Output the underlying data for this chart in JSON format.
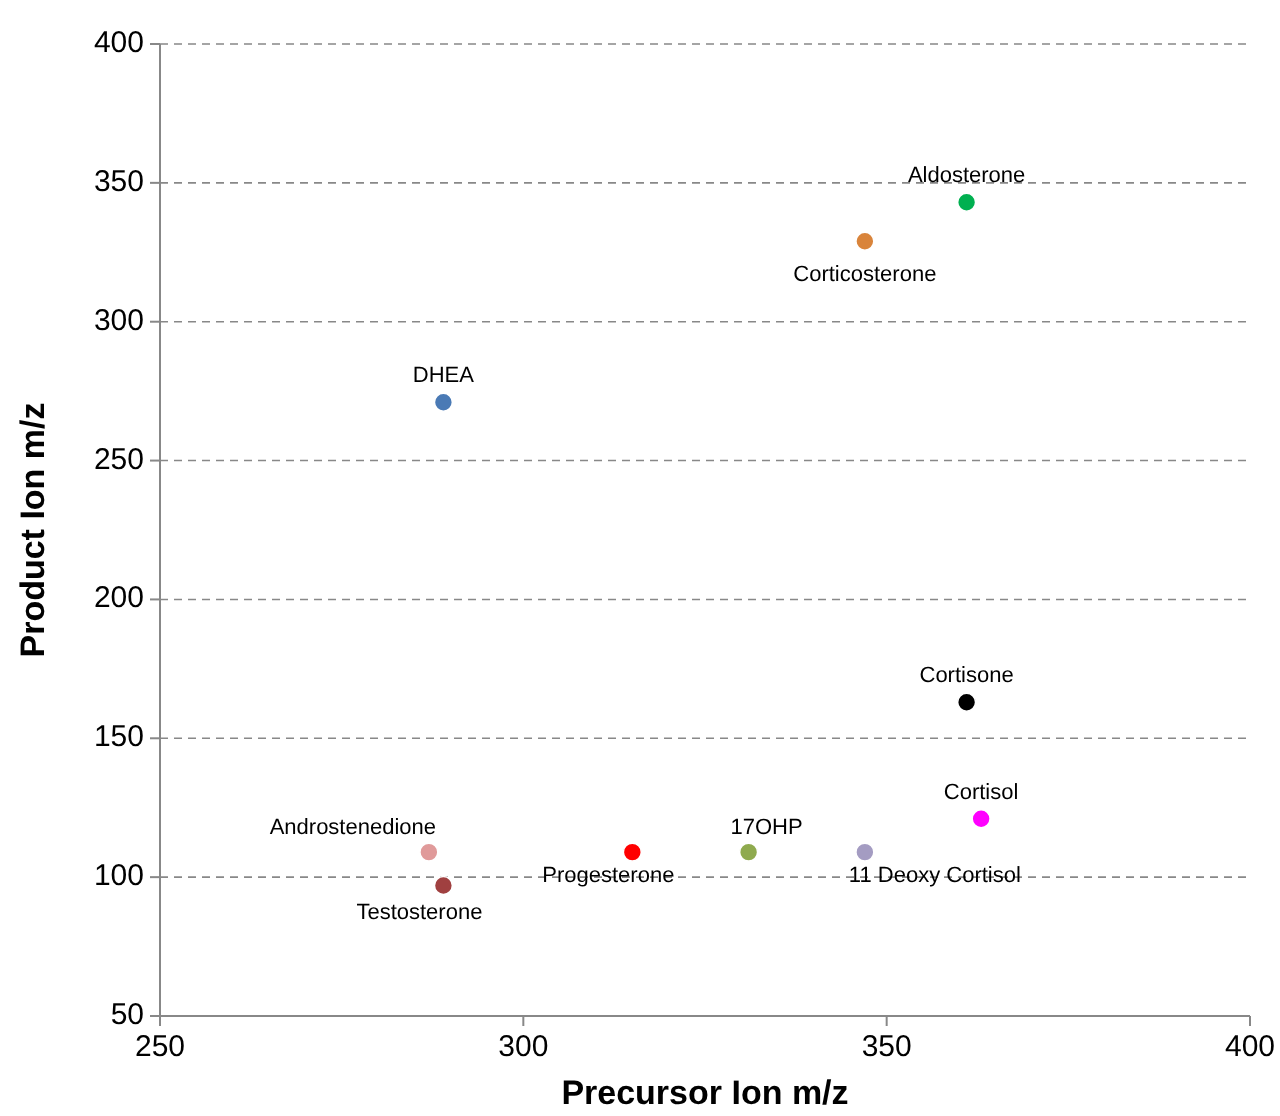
{
  "chart_data": {
    "type": "scatter",
    "xlabel": "Precursor Ion m/z",
    "ylabel": "Product Ion m/z",
    "xlim": [
      250,
      400
    ],
    "xticks": [
      250,
      300,
      350,
      400
    ],
    "ylim": [
      50,
      400
    ],
    "yticks": [
      50,
      100,
      150,
      200,
      250,
      300,
      350,
      400
    ],
    "grid": "y",
    "marker": "circle",
    "series": [
      {
        "name": "Aldosterone",
        "color": "#00b050",
        "x": [
          361
        ],
        "values": [
          343
        ]
      },
      {
        "name": "Corticosterone",
        "color": "#d9843b",
        "x": [
          347
        ],
        "values": [
          329
        ]
      },
      {
        "name": "DHEA",
        "color": "#4a7ab5",
        "x": [
          289
        ],
        "values": [
          271
        ]
      },
      {
        "name": "Cortisone",
        "color": "#000000",
        "x": [
          361
        ],
        "values": [
          163
        ]
      },
      {
        "name": "Cortisol",
        "color": "#ff00ff",
        "x": [
          363
        ],
        "values": [
          121
        ]
      },
      {
        "name": "Androstenedione",
        "color": "#e09a9a",
        "x": [
          287
        ],
        "values": [
          109
        ]
      },
      {
        "name": "Testosterone",
        "color": "#a04040",
        "x": [
          289
        ],
        "values": [
          97
        ]
      },
      {
        "name": "Progesterone",
        "color": "#ff0000",
        "x": [
          315
        ],
        "values": [
          109
        ]
      },
      {
        "name": "17OHP",
        "color": "#8faa4e",
        "x": [
          331
        ],
        "values": [
          109
        ]
      },
      {
        "name": "11 Deoxy Cortisol",
        "color": "#a49cc2",
        "x": [
          347
        ],
        "values": [
          109
        ]
      }
    ]
  }
}
